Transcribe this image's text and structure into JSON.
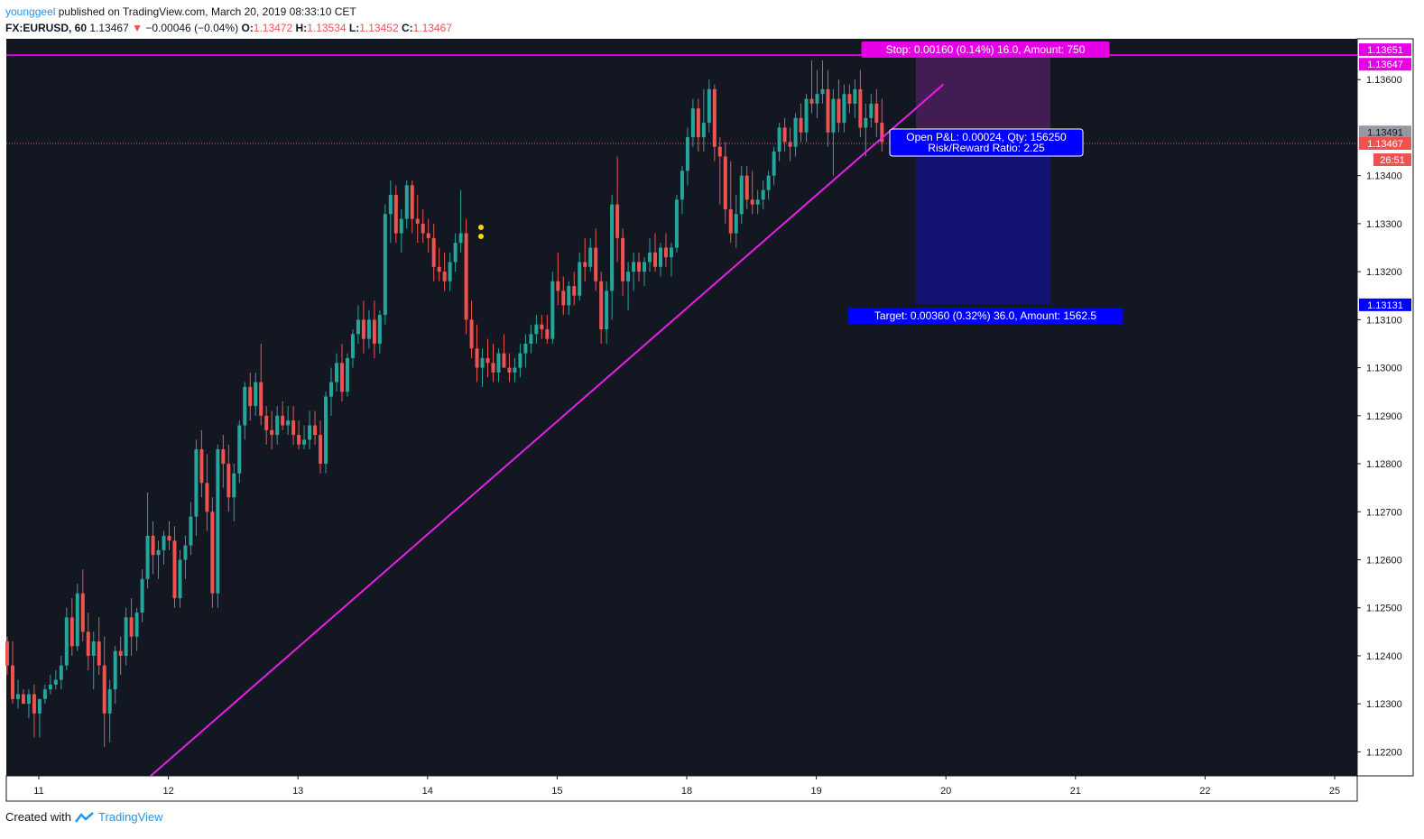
{
  "header": {
    "author": "younggeel",
    "published": "published on TradingView.com, March 20, 2019 08:33:10 CET",
    "symbol": "FX:EURUSD, 60",
    "last": "1.13467",
    "change": "−0.00046 (−0.04%)",
    "o_label": "O:",
    "o": "1.13472",
    "h_label": "H:",
    "h": "1.13534",
    "l_label": "L:",
    "l": "1.13452",
    "c_label": "C:",
    "c": "1.13467"
  },
  "footer": {
    "created": "Created with",
    "brand": "TradingView"
  },
  "colors": {
    "background": "#131722",
    "up": "#26a69a",
    "down": "#ef5350",
    "trendline": "#e91ee8",
    "stop_zone": "#4a1e5c",
    "target_zone": "#12127a",
    "target_label": "#0000ff",
    "stop_label": "#e600e6",
    "axis_bg": "#ffffff"
  },
  "chart_data": {
    "type": "candlestick",
    "symbol": "FX:EURUSD",
    "interval": "60",
    "ylim": [
      1.1215,
      1.13685
    ],
    "y_ticks": [
      "1.12200",
      "1.12300",
      "1.12400",
      "1.12500",
      "1.12600",
      "1.12700",
      "1.12800",
      "1.12900",
      "1.13000",
      "1.13100",
      "1.13200",
      "1.13300",
      "1.13400",
      "1.13600"
    ],
    "x_ticks": [
      "11",
      "12",
      "13",
      "14",
      "15",
      "18",
      "19",
      "20",
      "21",
      "22",
      "25"
    ],
    "price_badges": [
      {
        "text": "1.13651",
        "value": 1.13651,
        "color": "#e600e6",
        "text_color": "#ffffff"
      },
      {
        "text": "1.13647",
        "value": 1.13647,
        "color": "#e600e6",
        "text_color": "#ffffff"
      },
      {
        "text": "1.13491",
        "value": 1.13491,
        "color": "#9598a1",
        "text_color": "#131722"
      },
      {
        "text": "1.13467",
        "value": 1.13467,
        "color": "#ef5350",
        "text_color": "#ffffff"
      },
      {
        "text": "26:51",
        "value": 1.13441,
        "color": "#ef5350",
        "text_color": "#ffffff"
      },
      {
        "text": "1.13131",
        "value": 1.13131,
        "color": "#0000ff",
        "text_color": "#ffffff"
      }
    ],
    "position": {
      "type": "short",
      "entry": 1.13491,
      "stop": 1.13651,
      "target": 1.13131,
      "stop_label": "Stop: 0.00160 (0.14%) 16.0, Amount: 750",
      "target_label": "Target: 0.00360 (0.32%) 36.0, Amount: 1562.5",
      "pnl_label": "Open P&L: 0.00024, Qty: 156250",
      "rr_label": "Risk/Reward Ratio: 2.25"
    },
    "current_price": 1.13467,
    "trendline": [
      [
        1.1215,
        0.864
      ],
      [
        1.1359,
        6.98
      ]
    ],
    "candles_start_day_index": 0,
    "candles": [
      [
        1.1243,
        1.1244,
        1.1236,
        1.1238
      ],
      [
        1.1238,
        1.1243,
        1.123,
        1.1231
      ],
      [
        1.1231,
        1.1235,
        1.1229,
        1.1232
      ],
      [
        1.1232,
        1.1233,
        1.123,
        1.123
      ],
      [
        1.123,
        1.1233,
        1.1227,
        1.1232
      ],
      [
        1.1232,
        1.1234,
        1.1223,
        1.1228
      ],
      [
        1.1228,
        1.1231,
        1.1223,
        1.1231
      ],
      [
        1.1231,
        1.1234,
        1.123,
        1.1233
      ],
      [
        1.1233,
        1.1236,
        1.1232,
        1.1234
      ],
      [
        1.1234,
        1.1237,
        1.1233,
        1.1235
      ],
      [
        1.1235,
        1.124,
        1.1233,
        1.1238
      ],
      [
        1.1238,
        1.125,
        1.1237,
        1.1248
      ],
      [
        1.1248,
        1.1252,
        1.124,
        1.1242
      ],
      [
        1.1242,
        1.1255,
        1.1241,
        1.1253
      ],
      [
        1.1253,
        1.1258,
        1.1243,
        1.1245
      ],
      [
        1.1245,
        1.1249,
        1.1237,
        1.124
      ],
      [
        1.124,
        1.1245,
        1.1233,
        1.1243
      ],
      [
        1.1243,
        1.1248,
        1.1236,
        1.1238
      ],
      [
        1.1238,
        1.1244,
        1.1221,
        1.1228
      ],
      [
        1.1228,
        1.1235,
        1.1222,
        1.1233
      ],
      [
        1.1233,
        1.1242,
        1.123,
        1.1241
      ],
      [
        1.1241,
        1.1244,
        1.1236,
        1.124
      ],
      [
        1.124,
        1.125,
        1.1238,
        1.1248
      ],
      [
        1.1248,
        1.1252,
        1.124,
        1.1244
      ],
      [
        1.1244,
        1.125,
        1.1241,
        1.1249
      ],
      [
        1.1249,
        1.1258,
        1.1247,
        1.1256
      ],
      [
        1.1256,
        1.1274,
        1.1254,
        1.1265
      ],
      [
        1.1265,
        1.1268,
        1.1257,
        1.1261
      ],
      [
        1.1261,
        1.1264,
        1.1256,
        1.1262
      ],
      [
        1.1262,
        1.1266,
        1.1259,
        1.1265
      ],
      [
        1.1265,
        1.1268,
        1.1262,
        1.1264
      ],
      [
        1.1264,
        1.1267,
        1.125,
        1.1252
      ],
      [
        1.1252,
        1.1262,
        1.125,
        1.126
      ],
      [
        1.126,
        1.1265,
        1.1256,
        1.1263
      ],
      [
        1.1263,
        1.1272,
        1.1261,
        1.1269
      ],
      [
        1.1269,
        1.1285,
        1.1265,
        1.1283
      ],
      [
        1.1283,
        1.1287,
        1.1273,
        1.1276
      ],
      [
        1.1276,
        1.1282,
        1.1266,
        1.127
      ],
      [
        1.127,
        1.1273,
        1.125,
        1.1253
      ],
      [
        1.1253,
        1.1284,
        1.125,
        1.1283
      ],
      [
        1.1283,
        1.1286,
        1.1275,
        1.128
      ],
      [
        1.128,
        1.1284,
        1.127,
        1.1273
      ],
      [
        1.1273,
        1.128,
        1.1268,
        1.1278
      ],
      [
        1.1278,
        1.1289,
        1.1276,
        1.1288
      ],
      [
        1.1288,
        1.1297,
        1.1285,
        1.1296
      ],
      [
        1.1296,
        1.1299,
        1.1289,
        1.1292
      ],
      [
        1.1292,
        1.1299,
        1.129,
        1.1297
      ],
      [
        1.1297,
        1.1305,
        1.1288,
        1.129
      ],
      [
        1.129,
        1.1292,
        1.1284,
        1.1287
      ],
      [
        1.1287,
        1.1291,
        1.1283,
        1.1286
      ],
      [
        1.1286,
        1.1292,
        1.1284,
        1.129
      ],
      [
        1.129,
        1.1293,
        1.1287,
        1.1288
      ],
      [
        1.1288,
        1.1292,
        1.1286,
        1.1289
      ],
      [
        1.1289,
        1.1292,
        1.1284,
        1.1286
      ],
      [
        1.1286,
        1.1289,
        1.1283,
        1.1284
      ],
      [
        1.1284,
        1.1288,
        1.1283,
        1.1285
      ],
      [
        1.1285,
        1.1291,
        1.1283,
        1.1288
      ],
      [
        1.1288,
        1.1291,
        1.1284,
        1.1286
      ],
      [
        1.1286,
        1.1289,
        1.1278,
        1.128
      ],
      [
        1.128,
        1.1295,
        1.1278,
        1.1294
      ],
      [
        1.1294,
        1.13,
        1.129,
        1.1297
      ],
      [
        1.1297,
        1.1303,
        1.1295,
        1.1301
      ],
      [
        1.1301,
        1.1305,
        1.1293,
        1.1295
      ],
      [
        1.1295,
        1.1303,
        1.1294,
        1.1302
      ],
      [
        1.1302,
        1.1308,
        1.13,
        1.1307
      ],
      [
        1.1307,
        1.1313,
        1.1305,
        1.131
      ],
      [
        1.131,
        1.1314,
        1.1303,
        1.1306
      ],
      [
        1.1306,
        1.1312,
        1.1304,
        1.131
      ],
      [
        1.131,
        1.1314,
        1.1302,
        1.1305
      ],
      [
        1.1305,
        1.1312,
        1.1303,
        1.1311
      ],
      [
        1.1311,
        1.1334,
        1.1309,
        1.1332
      ],
      [
        1.1332,
        1.1339,
        1.1326,
        1.1336
      ],
      [
        1.1336,
        1.1338,
        1.1326,
        1.1328
      ],
      [
        1.1328,
        1.1333,
        1.1324,
        1.1331
      ],
      [
        1.1331,
        1.1339,
        1.1329,
        1.1338
      ],
      [
        1.1338,
        1.1339,
        1.1328,
        1.1331
      ],
      [
        1.1331,
        1.1336,
        1.1326,
        1.133
      ],
      [
        1.133,
        1.1333,
        1.1326,
        1.1328
      ],
      [
        1.1328,
        1.1331,
        1.1324,
        1.1327
      ],
      [
        1.1327,
        1.133,
        1.1318,
        1.1321
      ],
      [
        1.1321,
        1.1325,
        1.1318,
        1.132
      ],
      [
        1.132,
        1.1324,
        1.1316,
        1.1318
      ],
      [
        1.1318,
        1.1324,
        1.1316,
        1.1322
      ],
      [
        1.1322,
        1.1328,
        1.132,
        1.1326
      ],
      [
        1.1326,
        1.1337,
        1.1324,
        1.1328
      ],
      [
        1.1328,
        1.1331,
        1.1307,
        1.131
      ],
      [
        1.131,
        1.1314,
        1.1302,
        1.1304
      ],
      [
        1.1304,
        1.1309,
        1.1297,
        1.13
      ],
      [
        1.13,
        1.1304,
        1.1296,
        1.1302
      ],
      [
        1.1302,
        1.1306,
        1.1298,
        1.1301
      ],
      [
        1.1301,
        1.1305,
        1.1297,
        1.1299
      ],
      [
        1.1299,
        1.1304,
        1.1297,
        1.1303
      ],
      [
        1.1303,
        1.1307,
        1.13,
        1.13
      ],
      [
        1.13,
        1.1303,
        1.1297,
        1.1299
      ],
      [
        1.1299,
        1.1302,
        1.1297,
        1.13
      ],
      [
        1.13,
        1.1305,
        1.1298,
        1.1303
      ],
      [
        1.1303,
        1.1307,
        1.13,
        1.1305
      ],
      [
        1.1305,
        1.1309,
        1.1303,
        1.1307
      ],
      [
        1.1307,
        1.1311,
        1.1305,
        1.1309
      ],
      [
        1.1309,
        1.1311,
        1.1306,
        1.1308
      ],
      [
        1.1308,
        1.1311,
        1.1305,
        1.1306
      ],
      [
        1.1306,
        1.132,
        1.1305,
        1.1318
      ],
      [
        1.1318,
        1.1324,
        1.1313,
        1.1316
      ],
      [
        1.1316,
        1.1319,
        1.1311,
        1.1313
      ],
      [
        1.1313,
        1.1318,
        1.1311,
        1.1317
      ],
      [
        1.1317,
        1.132,
        1.1313,
        1.1315
      ],
      [
        1.1315,
        1.1324,
        1.1314,
        1.1322
      ],
      [
        1.1322,
        1.1327,
        1.1318,
        1.1321
      ],
      [
        1.1321,
        1.1327,
        1.132,
        1.1325
      ],
      [
        1.1325,
        1.1329,
        1.1316,
        1.1318
      ],
      [
        1.1318,
        1.132,
        1.1305,
        1.1308
      ],
      [
        1.1308,
        1.1318,
        1.1305,
        1.1316
      ],
      [
        1.1316,
        1.1336,
        1.131,
        1.1334
      ],
      [
        1.1334,
        1.1344,
        1.1322,
        1.1327
      ],
      [
        1.1327,
        1.1329,
        1.1315,
        1.1318
      ],
      [
        1.1318,
        1.1322,
        1.1312,
        1.132
      ],
      [
        1.132,
        1.1324,
        1.1316,
        1.1322
      ],
      [
        1.1322,
        1.1324,
        1.1318,
        1.132
      ],
      [
        1.132,
        1.1323,
        1.1317,
        1.1322
      ],
      [
        1.1322,
        1.1327,
        1.132,
        1.1324
      ],
      [
        1.1324,
        1.1328,
        1.132,
        1.1321
      ],
      [
        1.1321,
        1.1326,
        1.1319,
        1.1325
      ],
      [
        1.1325,
        1.1328,
        1.1321,
        1.1323
      ],
      [
        1.1323,
        1.1326,
        1.1319,
        1.1325
      ],
      [
        1.1325,
        1.1336,
        1.1324,
        1.1335
      ],
      [
        1.1335,
        1.1342,
        1.1332,
        1.1341
      ],
      [
        1.1341,
        1.135,
        1.1338,
        1.1348
      ],
      [
        1.1348,
        1.1356,
        1.1346,
        1.1354
      ],
      [
        1.1354,
        1.1356,
        1.1345,
        1.1348
      ],
      [
        1.1348,
        1.1358,
        1.1345,
        1.1351
      ],
      [
        1.1351,
        1.136,
        1.1349,
        1.1358
      ],
      [
        1.1358,
        1.1359,
        1.1343,
        1.1346
      ],
      [
        1.1346,
        1.1348,
        1.1334,
        1.1344
      ],
      [
        1.1344,
        1.1347,
        1.133,
        1.1333
      ],
      [
        1.1333,
        1.1343,
        1.1326,
        1.1328
      ],
      [
        1.1328,
        1.1336,
        1.1325,
        1.1332
      ],
      [
        1.1332,
        1.1342,
        1.133,
        1.134
      ],
      [
        1.134,
        1.1342,
        1.1333,
        1.1335
      ],
      [
        1.1335,
        1.1341,
        1.1332,
        1.1334
      ],
      [
        1.1334,
        1.1337,
        1.1332,
        1.1335
      ],
      [
        1.1335,
        1.1339,
        1.1333,
        1.1337
      ],
      [
        1.1337,
        1.1341,
        1.1335,
        1.134
      ],
      [
        1.134,
        1.1346,
        1.1338,
        1.1345
      ],
      [
        1.1345,
        1.1351,
        1.1343,
        1.135
      ],
      [
        1.135,
        1.1352,
        1.1345,
        1.1347
      ],
      [
        1.1347,
        1.135,
        1.1343,
        1.1346
      ],
      [
        1.1346,
        1.1353,
        1.1344,
        1.1352
      ],
      [
        1.1352,
        1.1355,
        1.1347,
        1.1349
      ],
      [
        1.1349,
        1.1357,
        1.1347,
        1.1356
      ],
      [
        1.1356,
        1.1364,
        1.1353,
        1.1355
      ],
      [
        1.1355,
        1.1362,
        1.1352,
        1.1357
      ],
      [
        1.1357,
        1.1364,
        1.1355,
        1.1358
      ],
      [
        1.1358,
        1.1362,
        1.1346,
        1.1349
      ],
      [
        1.1349,
        1.1358,
        1.134,
        1.1356
      ],
      [
        1.1356,
        1.136,
        1.1349,
        1.1351
      ],
      [
        1.1351,
        1.1359,
        1.1349,
        1.1357
      ],
      [
        1.1357,
        1.1359,
        1.1353,
        1.1355
      ],
      [
        1.1355,
        1.136,
        1.1352,
        1.1358
      ],
      [
        1.1358,
        1.1362,
        1.1348,
        1.135
      ],
      [
        1.135,
        1.1355,
        1.1344,
        1.1352
      ],
      [
        1.1352,
        1.1357,
        1.135,
        1.1355
      ],
      [
        1.1355,
        1.1358,
        1.1348,
        1.1351
      ],
      [
        1.1351,
        1.1356,
        1.1345,
        1.1347
      ]
    ]
  }
}
